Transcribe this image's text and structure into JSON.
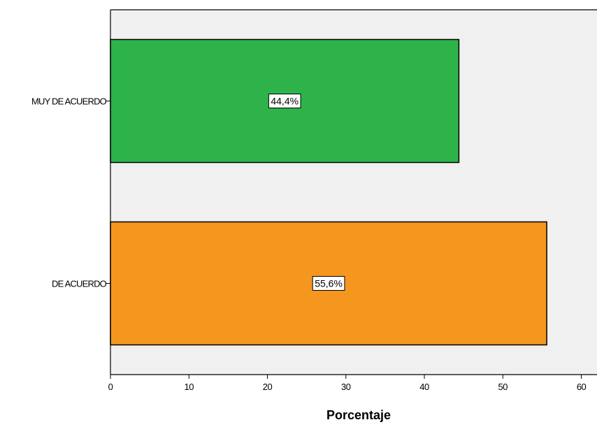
{
  "chart_data": {
    "type": "bar",
    "orientation": "horizontal",
    "categories": [
      "MUY DE ACUERDO",
      "DE ACUERDO"
    ],
    "values": [
      44.4,
      55.6
    ],
    "data_labels": [
      "44,4%",
      "55,6%"
    ],
    "colors": [
      "#2db34a",
      "#f5961e"
    ],
    "xlabel": "Porcentaje",
    "ylabel": "",
    "xlim": [
      0,
      62
    ],
    "xticks": [
      0,
      10,
      20,
      30,
      40,
      50,
      60
    ],
    "plot_background": "#f0f0f0",
    "grid": false,
    "legend": "none"
  }
}
